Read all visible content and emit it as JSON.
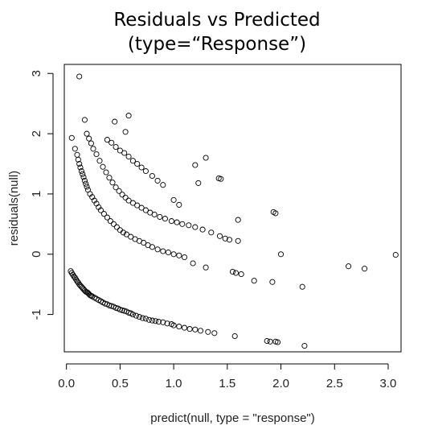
{
  "chart_data": {
    "type": "scatter",
    "title": "Residuals vs Predicted",
    "subtitle": "(type=“Response”)",
    "xlabel": "predict(null, type = \"response\")",
    "ylabel": "residuals(null)",
    "xlim": [
      -0.02,
      3.12
    ],
    "ylim": [
      -1.62,
      3.15
    ],
    "x_ticks": [
      0.0,
      0.5,
      1.0,
      1.5,
      2.0,
      2.5,
      3.0
    ],
    "x_tick_labels": [
      "0.0",
      "0.5",
      "1.0",
      "1.5",
      "2.0",
      "2.5",
      "3.0"
    ],
    "y_ticks": [
      -1,
      0,
      1,
      2,
      3
    ],
    "y_tick_labels": [
      "-1",
      "0",
      "1",
      "2",
      "3"
    ],
    "marker": "open-circle",
    "grid": false,
    "legend": "none",
    "series": [
      {
        "x": [
          0.04,
          0.05,
          0.06,
          0.07,
          0.08,
          0.09,
          0.1,
          0.11,
          0.12,
          0.13,
          0.14,
          0.15,
          0.16,
          0.17,
          0.18,
          0.19,
          0.2,
          0.21,
          0.22,
          0.23,
          0.24,
          0.26,
          0.28,
          0.3,
          0.32,
          0.34,
          0.36,
          0.38,
          0.4,
          0.42,
          0.44,
          0.46,
          0.48,
          0.5,
          0.52,
          0.54,
          0.56,
          0.58,
          0.6,
          0.62,
          0.65,
          0.68,
          0.71,
          0.74,
          0.77,
          0.8,
          0.83,
          0.86,
          0.9,
          0.94,
          0.98,
          1.0,
          1.05,
          1.1,
          1.15,
          1.2,
          1.25,
          1.32,
          1.38,
          1.57,
          1.87,
          1.9,
          1.95,
          1.97,
          2.22
        ],
        "y": [
          -0.28,
          -0.31,
          -0.34,
          -0.37,
          -0.39,
          -0.42,
          -0.45,
          -0.47,
          -0.5,
          -0.52,
          -0.54,
          -0.56,
          -0.58,
          -0.6,
          -0.62,
          -0.63,
          -0.64,
          -0.66,
          -0.68,
          -0.69,
          -0.7,
          -0.72,
          -0.74,
          -0.76,
          -0.78,
          -0.8,
          -0.82,
          -0.83,
          -0.85,
          -0.86,
          -0.87,
          -0.89,
          -0.9,
          -0.92,
          -0.93,
          -0.94,
          -0.95,
          -0.97,
          -0.98,
          -1.0,
          -1.02,
          -1.04,
          -1.06,
          -1.07,
          -1.09,
          -1.1,
          -1.11,
          -1.12,
          -1.13,
          -1.15,
          -1.16,
          -1.18,
          -1.2,
          -1.22,
          -1.24,
          -1.25,
          -1.27,
          -1.29,
          -1.31,
          -1.36,
          -1.44,
          -1.45,
          -1.45,
          -1.46,
          -1.52
        ]
      },
      {
        "x": [
          0.05,
          0.08,
          0.1,
          0.11,
          0.12,
          0.13,
          0.14,
          0.15,
          0.16,
          0.17,
          0.18,
          0.19,
          0.2,
          0.22,
          0.24,
          0.26,
          0.28,
          0.3,
          0.32,
          0.35,
          0.38,
          0.41,
          0.44,
          0.47,
          0.5,
          0.53,
          0.56,
          0.6,
          0.64,
          0.68,
          0.72,
          0.76,
          0.8,
          0.85,
          0.9,
          0.95,
          1.0,
          1.05,
          1.1,
          1.18,
          1.3,
          1.55,
          1.58,
          1.63,
          1.75,
          1.92,
          2.0,
          2.2,
          2.63,
          2.78,
          3.07
        ],
        "y": [
          1.93,
          1.75,
          1.65,
          1.57,
          1.5,
          1.44,
          1.38,
          1.33,
          1.28,
          1.22,
          1.17,
          1.12,
          1.07,
          1.0,
          0.95,
          0.89,
          0.84,
          0.78,
          0.73,
          0.67,
          0.61,
          0.55,
          0.5,
          0.45,
          0.4,
          0.36,
          0.33,
          0.29,
          0.25,
          0.22,
          0.19,
          0.15,
          0.12,
          0.08,
          0.05,
          0.03,
          0.0,
          -0.02,
          -0.05,
          -0.15,
          -0.22,
          -0.29,
          -0.31,
          -0.33,
          -0.44,
          -0.46,
          0.0,
          -0.54,
          -0.2,
          -0.24,
          -0.01
        ]
      },
      {
        "x": [
          0.12,
          0.17,
          0.19,
          0.21,
          0.23,
          0.25,
          0.28,
          0.31,
          0.34,
          0.37,
          0.4,
          0.43,
          0.46,
          0.49,
          0.52,
          0.55,
          0.58,
          0.62,
          0.66,
          0.7,
          0.74,
          0.78,
          0.82,
          0.87,
          0.92,
          0.98,
          1.03,
          1.08,
          1.14,
          1.2,
          1.27,
          1.35,
          1.43,
          1.48,
          1.52,
          1.6
        ],
        "y": [
          2.95,
          2.23,
          2.0,
          1.92,
          1.84,
          1.75,
          1.66,
          1.55,
          1.45,
          1.36,
          1.27,
          1.19,
          1.11,
          1.05,
          0.99,
          0.94,
          0.89,
          0.85,
          0.81,
          0.77,
          0.73,
          0.69,
          0.66,
          0.62,
          0.59,
          0.55,
          0.53,
          0.5,
          0.48,
          0.45,
          0.41,
          0.36,
          0.3,
          0.26,
          0.24,
          0.22
        ]
      },
      {
        "x": [
          0.38,
          0.42,
          0.46,
          0.5,
          0.54,
          0.58,
          0.62,
          0.66,
          0.7,
          0.74,
          0.8,
          0.85,
          0.9,
          1.0,
          1.05,
          1.2,
          1.23,
          1.3,
          1.42,
          1.44,
          1.6,
          1.93,
          1.95,
          0.45,
          0.55,
          0.58
        ],
        "y": [
          1.9,
          1.85,
          1.78,
          1.72,
          1.68,
          1.62,
          1.55,
          1.5,
          1.44,
          1.38,
          1.3,
          1.22,
          1.15,
          0.9,
          0.82,
          1.48,
          1.18,
          1.6,
          1.26,
          1.25,
          0.57,
          0.7,
          0.68,
          2.2,
          2.03,
          2.3
        ]
      }
    ]
  }
}
